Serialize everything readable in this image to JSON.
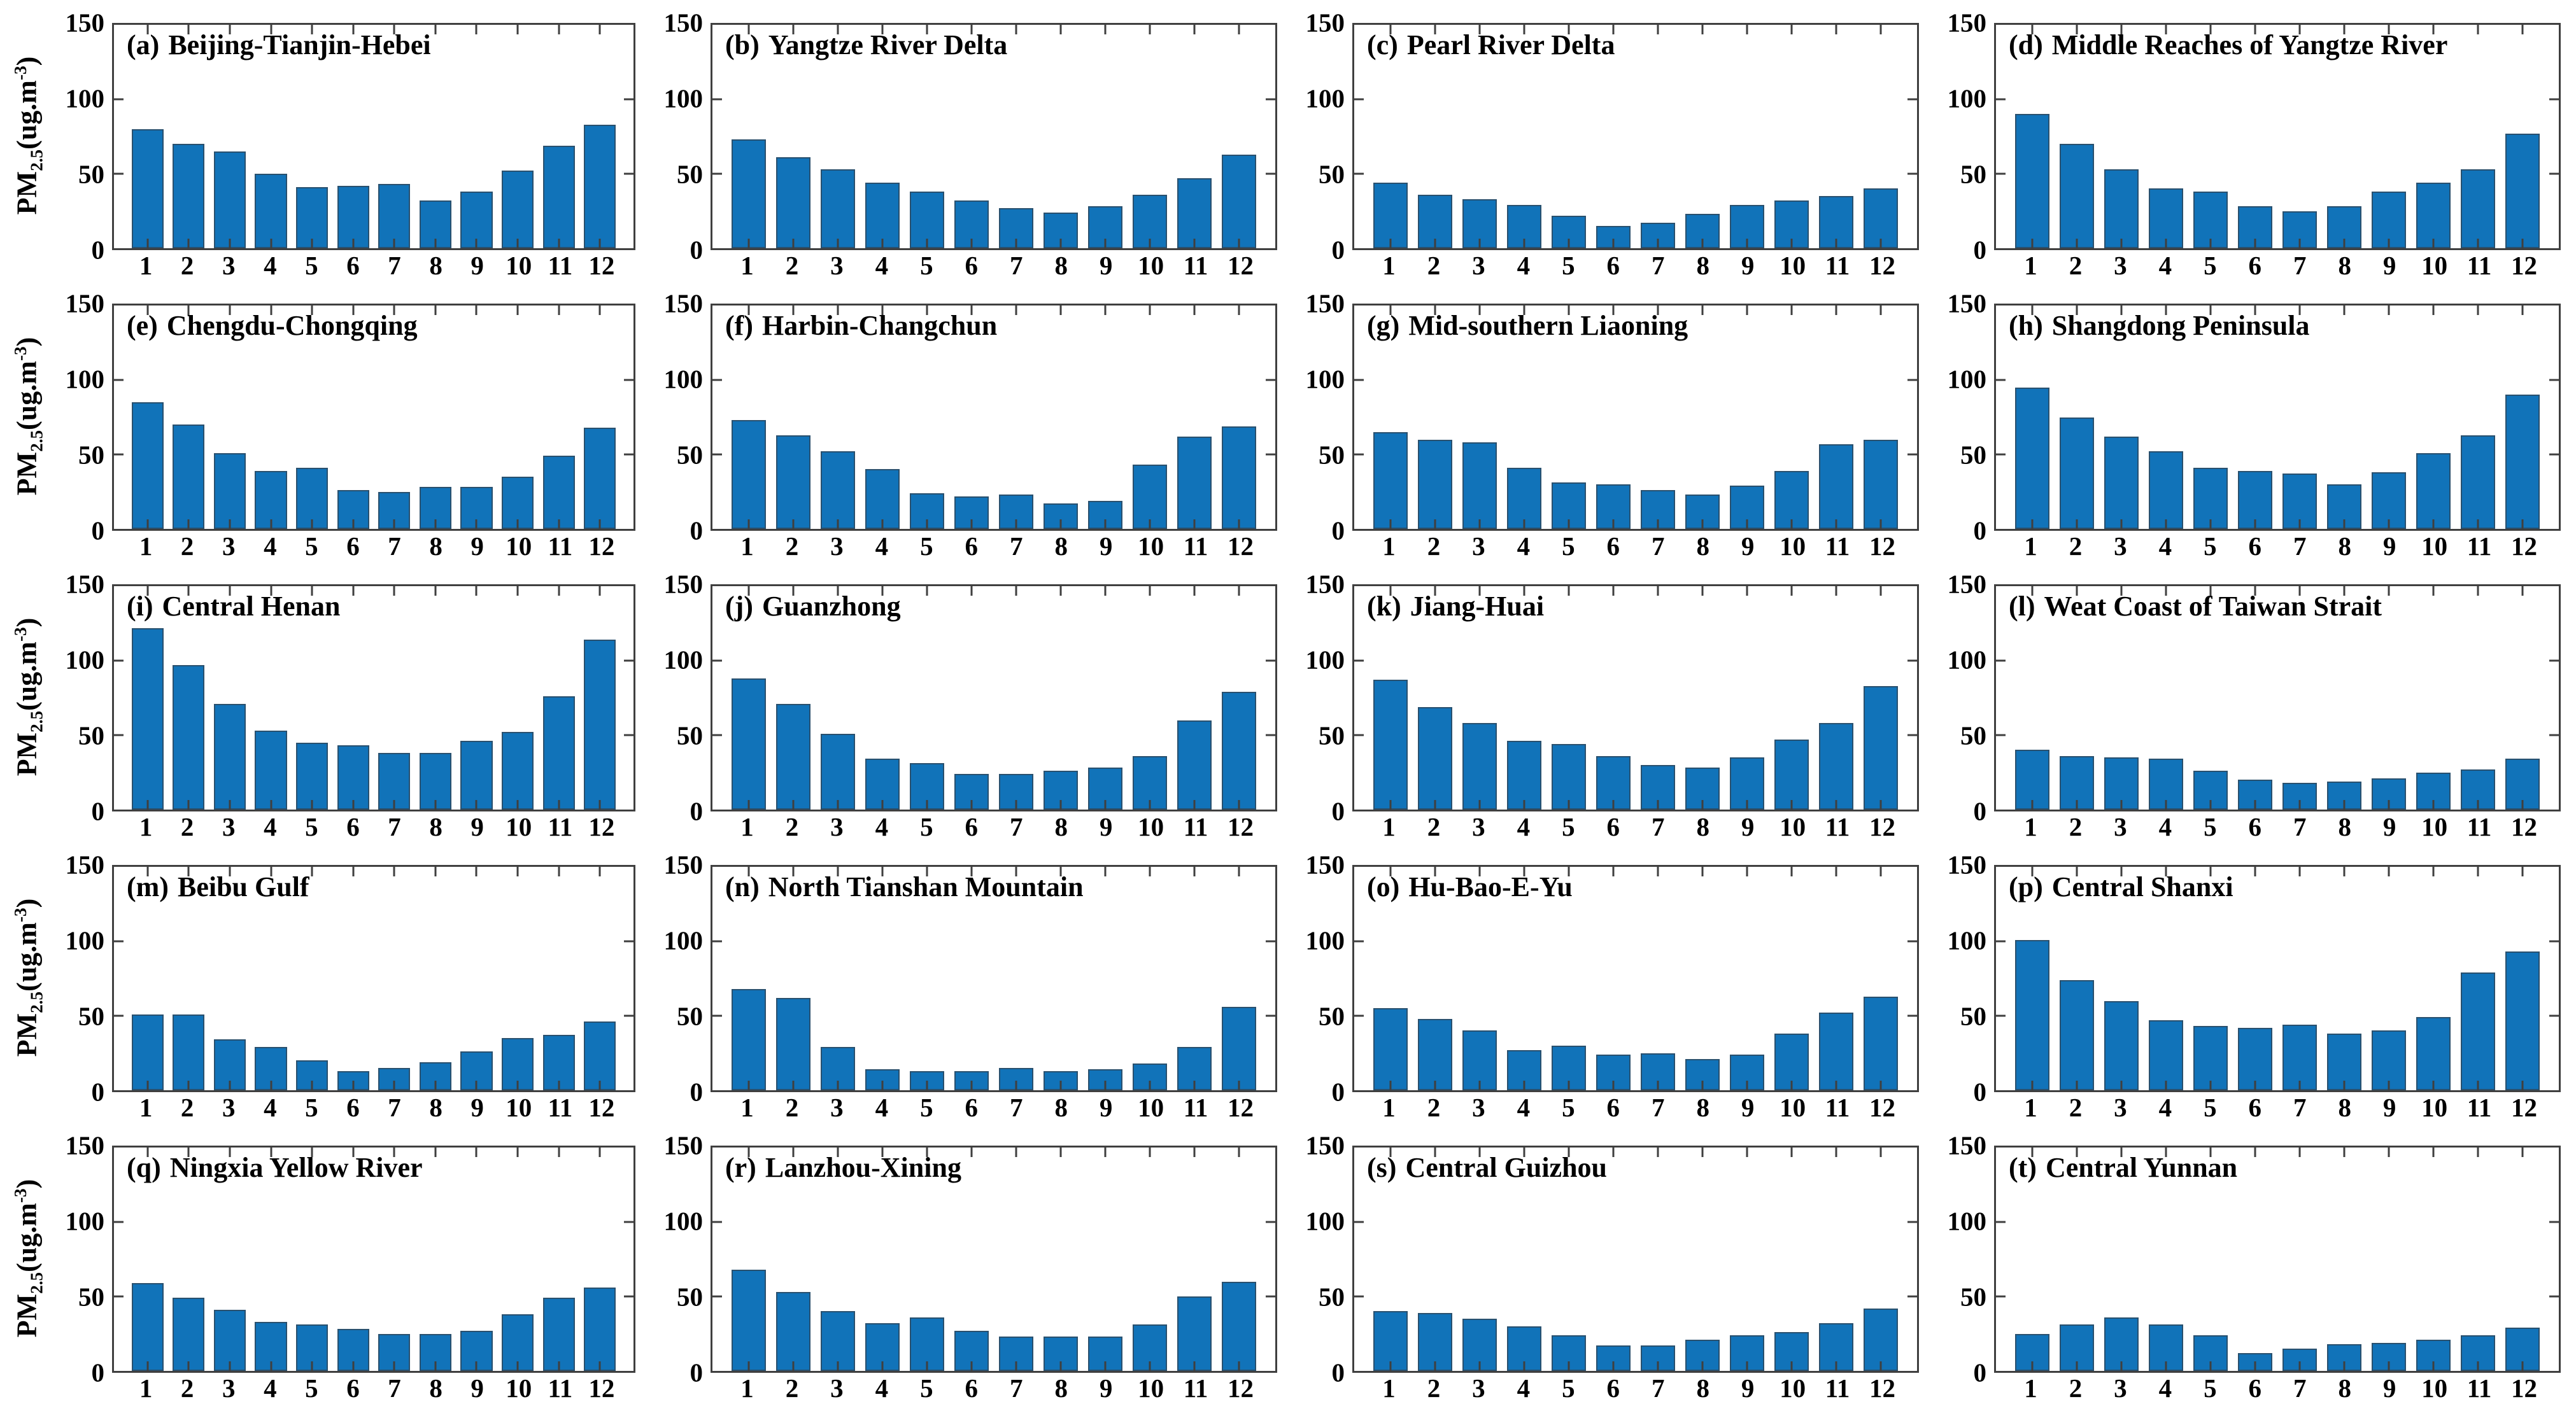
{
  "figure": {
    "description": "Monthly mean PM2.5 bar charts for 20 Chinese urban agglomerations, 5x4 grid of panels"
  },
  "axis": {
    "ylabel_parts": [
      "PM",
      "2.5",
      "(ug.m",
      "-3",
      ")"
    ],
    "ylabel_plain": "PM2.5(ug.m-3)",
    "ylim": [
      0,
      150
    ],
    "ytick_labels": [
      "150",
      "100",
      "50",
      "0"
    ],
    "categories": [
      "1",
      "2",
      "3",
      "4",
      "5",
      "6",
      "7",
      "8",
      "9",
      "10",
      "11",
      "12"
    ]
  },
  "colors": {
    "bar_fill": "#1173b9",
    "bar_edge": "#29506e",
    "axis_line": "#3f3f3f",
    "text": "#000000",
    "background": "#ffffff"
  },
  "chart_data": [
    {
      "type": "bar",
      "label": "(a)",
      "title": "Beijing-Tianjin-Hebei",
      "values": [
        80,
        70,
        65,
        50,
        41,
        42,
        43,
        32,
        38,
        52,
        69,
        83
      ]
    },
    {
      "type": "bar",
      "label": "(b)",
      "title": "Yangtze River Delta",
      "values": [
        73,
        61,
        53,
        44,
        38,
        32,
        27,
        24,
        28,
        36,
        47,
        63
      ]
    },
    {
      "type": "bar",
      "label": "(c)",
      "title": "Pearl River Delta",
      "values": [
        44,
        36,
        33,
        29,
        22,
        15,
        17,
        23,
        29,
        32,
        35,
        40
      ]
    },
    {
      "type": "bar",
      "label": "(d)",
      "title": "Middle Reaches of Yangtze River",
      "values": [
        90,
        70,
        53,
        40,
        38,
        28,
        25,
        28,
        38,
        44,
        53,
        77
      ]
    },
    {
      "type": "bar",
      "label": "(e)",
      "title": "Chengdu-Chongqing",
      "values": [
        85,
        70,
        51,
        39,
        41,
        26,
        25,
        28,
        28,
        35,
        49,
        68
      ]
    },
    {
      "type": "bar",
      "label": "(f)",
      "title": "Harbin-Changchun",
      "values": [
        73,
        63,
        52,
        40,
        24,
        22,
        23,
        17,
        19,
        43,
        62,
        69
      ]
    },
    {
      "type": "bar",
      "label": "(g)",
      "title": "Mid-southern Liaoning",
      "values": [
        65,
        60,
        58,
        41,
        31,
        30,
        26,
        23,
        29,
        39,
        57,
        60
      ]
    },
    {
      "type": "bar",
      "label": "(h)",
      "title": "Shangdong Peninsula",
      "values": [
        95,
        75,
        62,
        52,
        41,
        39,
        37,
        30,
        38,
        51,
        63,
        90
      ]
    },
    {
      "type": "bar",
      "label": "(i)",
      "title": "Central Henan",
      "values": [
        122,
        97,
        71,
        53,
        45,
        43,
        38,
        38,
        46,
        52,
        76,
        114
      ]
    },
    {
      "type": "bar",
      "label": "(j)",
      "title": "Guanzhong",
      "values": [
        88,
        71,
        51,
        34,
        31,
        24,
        24,
        26,
        28,
        36,
        60,
        79
      ]
    },
    {
      "type": "bar",
      "label": "(k)",
      "title": "Jiang-Huai",
      "values": [
        87,
        69,
        58,
        46,
        44,
        36,
        30,
        28,
        35,
        47,
        58,
        83
      ]
    },
    {
      "type": "bar",
      "label": "(l)",
      "title": "Weat Coast of Taiwan Strait",
      "values": [
        40,
        36,
        35,
        34,
        26,
        20,
        18,
        19,
        21,
        25,
        27,
        34
      ]
    },
    {
      "type": "bar",
      "label": "(m)",
      "title": "Beibu Gulf",
      "values": [
        51,
        51,
        34,
        29,
        20,
        13,
        15,
        19,
        26,
        35,
        37,
        46
      ]
    },
    {
      "type": "bar",
      "label": "(n)",
      "title": "North Tianshan Mountain",
      "values": [
        68,
        62,
        29,
        14,
        13,
        13,
        15,
        13,
        14,
        18,
        29,
        56
      ]
    },
    {
      "type": "bar",
      "label": "(o)",
      "title": "Hu-Bao-E-Yu",
      "values": [
        55,
        48,
        40,
        27,
        30,
        24,
        25,
        21,
        24,
        38,
        52,
        63
      ]
    },
    {
      "type": "bar",
      "label": "(p)",
      "title": "Central Shanxi",
      "values": [
        101,
        74,
        60,
        47,
        43,
        42,
        44,
        38,
        40,
        49,
        79,
        93
      ]
    },
    {
      "type": "bar",
      "label": "(q)",
      "title": "Ningxia Yellow River",
      "values": [
        59,
        49,
        41,
        33,
        31,
        28,
        25,
        25,
        27,
        38,
        49,
        56
      ]
    },
    {
      "type": "bar",
      "label": "(r)",
      "title": "Lanzhou-Xining",
      "values": [
        68,
        53,
        40,
        32,
        36,
        27,
        23,
        23,
        23,
        31,
        50,
        60
      ]
    },
    {
      "type": "bar",
      "label": "(s)",
      "title": "Central Guizhou",
      "values": [
        40,
        39,
        35,
        30,
        24,
        17,
        17,
        21,
        24,
        26,
        32,
        42
      ]
    },
    {
      "type": "bar",
      "label": "(t)",
      "title": "Central Yunnan",
      "values": [
        25,
        31,
        36,
        31,
        24,
        12,
        15,
        18,
        19,
        21,
        24,
        29
      ]
    }
  ]
}
